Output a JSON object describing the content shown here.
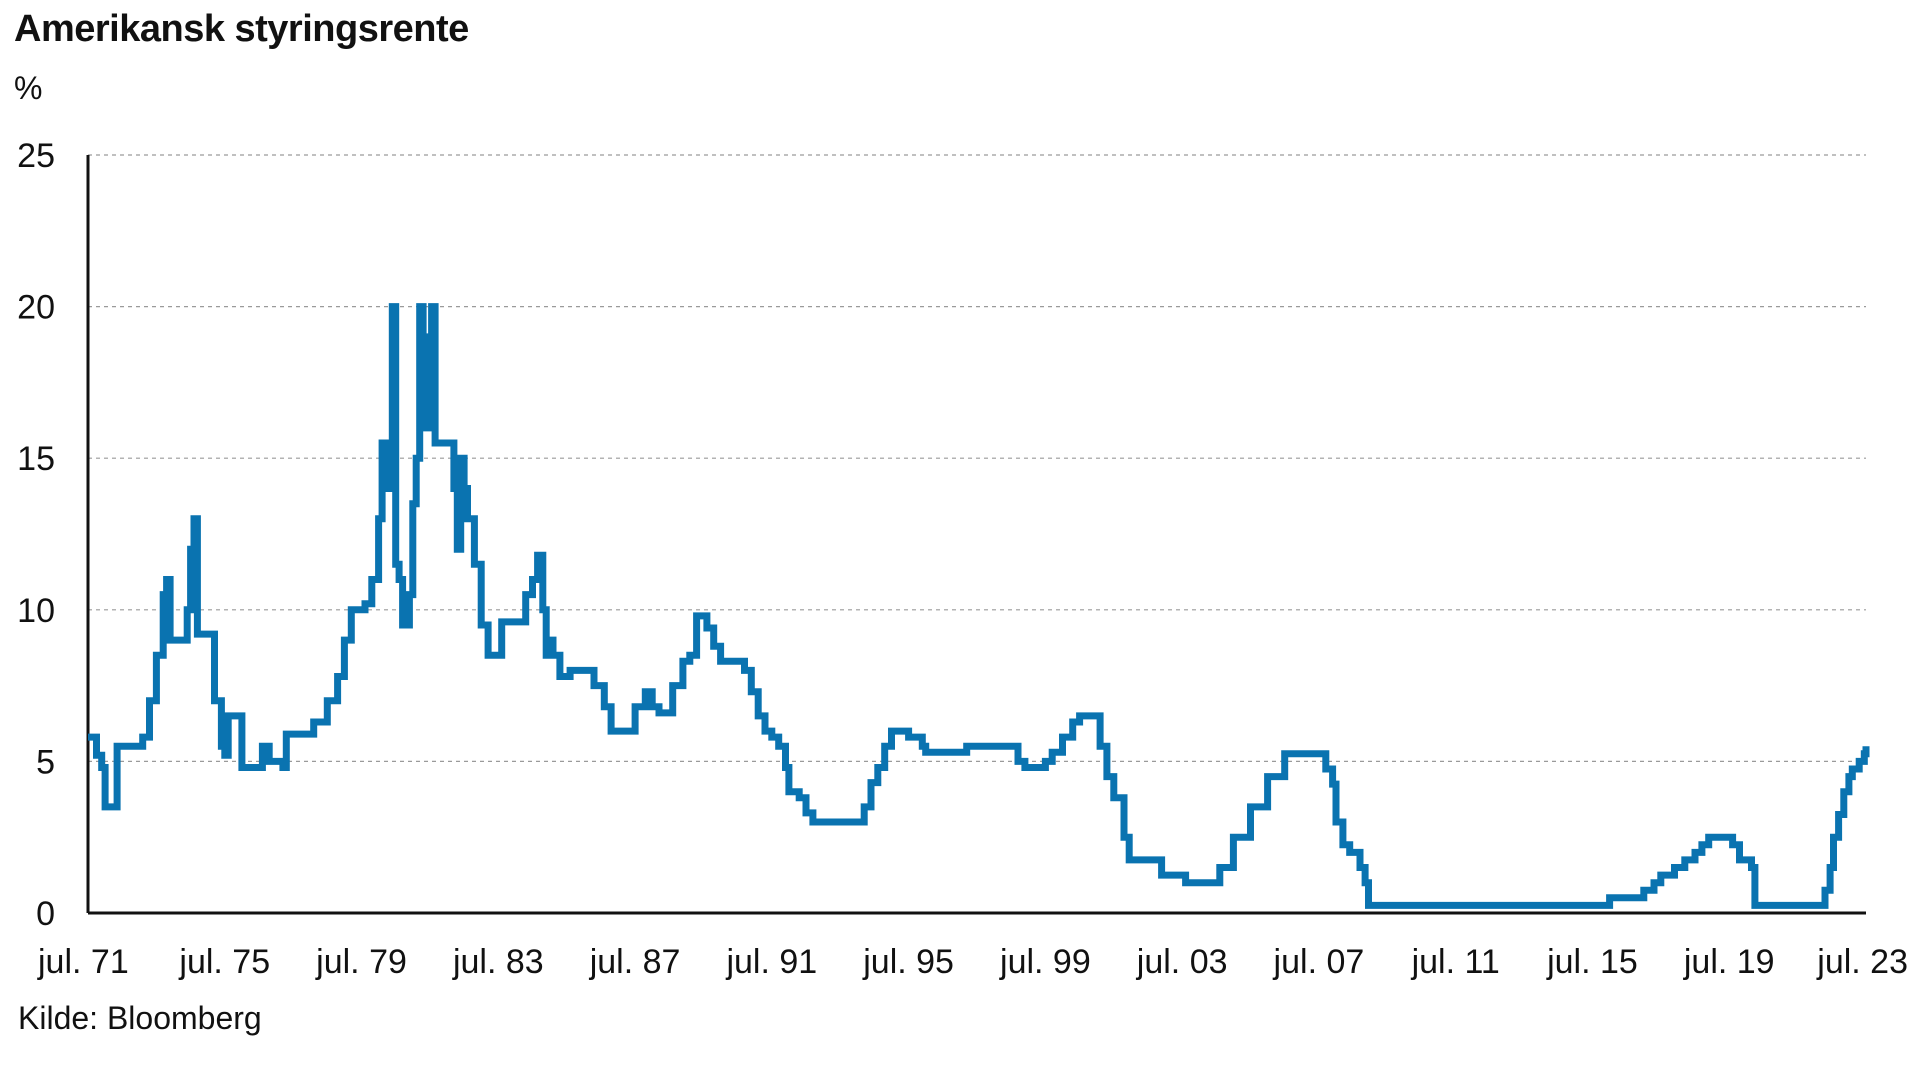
{
  "chart_data": {
    "type": "line",
    "title": "Amerikansk styringsrente",
    "ylabel": "%",
    "source": "Kilde: Bloomberg",
    "ylim": [
      0,
      25
    ],
    "y_ticks": [
      "0",
      "5",
      "10",
      "15",
      "20",
      "25"
    ],
    "x_range": [
      1971.5,
      2023.5
    ],
    "x_ticks": [
      {
        "x": 1971.5,
        "label": "jul. 71"
      },
      {
        "x": 1975.5,
        "label": "jul. 75"
      },
      {
        "x": 1979.5,
        "label": "jul. 79"
      },
      {
        "x": 1983.5,
        "label": "jul. 83"
      },
      {
        "x": 1987.5,
        "label": "jul. 87"
      },
      {
        "x": 1991.5,
        "label": "jul. 91"
      },
      {
        "x": 1995.5,
        "label": "jul. 95"
      },
      {
        "x": 1999.5,
        "label": "jul. 99"
      },
      {
        "x": 2003.5,
        "label": "jul. 03"
      },
      {
        "x": 2007.5,
        "label": "jul. 07"
      },
      {
        "x": 2011.5,
        "label": "jul. 11"
      },
      {
        "x": 2015.5,
        "label": "jul. 15"
      },
      {
        "x": 2019.5,
        "label": "jul. 19"
      },
      {
        "x": 2023.5,
        "label": "jul. 23"
      }
    ],
    "grid": "horizontal-dashed",
    "line_color": "#0a73b0",
    "series": [
      {
        "points": [
          [
            1971.5,
            5.8
          ],
          [
            1971.75,
            5.2
          ],
          [
            1971.9,
            4.8
          ],
          [
            1972.0,
            3.5
          ],
          [
            1972.3,
            3.5
          ],
          [
            1972.35,
            5.5
          ],
          [
            1973.0,
            5.5
          ],
          [
            1973.1,
            5.8
          ],
          [
            1973.3,
            7.0
          ],
          [
            1973.5,
            8.5
          ],
          [
            1973.7,
            10.5
          ],
          [
            1973.8,
            11.0
          ],
          [
            1973.9,
            9.0
          ],
          [
            1974.4,
            10.0
          ],
          [
            1974.5,
            12.0
          ],
          [
            1974.6,
            13.0
          ],
          [
            1974.7,
            9.2
          ],
          [
            1975.0,
            9.2
          ],
          [
            1975.2,
            7.0
          ],
          [
            1975.4,
            5.5
          ],
          [
            1975.5,
            5.2
          ],
          [
            1975.6,
            6.5
          ],
          [
            1975.9,
            6.5
          ],
          [
            1976.0,
            4.8
          ],
          [
            1976.5,
            4.8
          ],
          [
            1976.6,
            5.5
          ],
          [
            1976.8,
            5.0
          ],
          [
            1977.0,
            5.0
          ],
          [
            1977.2,
            4.8
          ],
          [
            1977.3,
            5.9
          ],
          [
            1977.9,
            5.9
          ],
          [
            1978.1,
            6.3
          ],
          [
            1978.5,
            7.0
          ],
          [
            1978.8,
            7.8
          ],
          [
            1979.0,
            9.0
          ],
          [
            1979.2,
            10.0
          ],
          [
            1979.6,
            10.2
          ],
          [
            1979.8,
            11.0
          ],
          [
            1980.0,
            13.0
          ],
          [
            1980.1,
            15.5
          ],
          [
            1980.2,
            14.0
          ],
          [
            1980.3,
            15.5
          ],
          [
            1980.4,
            20.0
          ],
          [
            1980.5,
            11.5
          ],
          [
            1980.6,
            11.0
          ],
          [
            1980.7,
            9.5
          ],
          [
            1980.9,
            10.5
          ],
          [
            1981.0,
            13.5
          ],
          [
            1981.1,
            15.0
          ],
          [
            1981.2,
            20.0
          ],
          [
            1981.3,
            19.0
          ],
          [
            1981.4,
            16.0
          ],
          [
            1981.55,
            20.0
          ],
          [
            1981.65,
            15.5
          ],
          [
            1982.1,
            15.5
          ],
          [
            1982.2,
            14.0
          ],
          [
            1982.3,
            12.0
          ],
          [
            1982.4,
            15.0
          ],
          [
            1982.5,
            14.0
          ],
          [
            1982.6,
            13.0
          ],
          [
            1982.8,
            11.5
          ],
          [
            1983.0,
            9.5
          ],
          [
            1983.2,
            8.5
          ],
          [
            1983.6,
            9.6
          ],
          [
            1984.0,
            9.6
          ],
          [
            1984.3,
            10.5
          ],
          [
            1984.5,
            11.0
          ],
          [
            1984.65,
            11.8
          ],
          [
            1984.8,
            10.0
          ],
          [
            1984.9,
            8.5
          ],
          [
            1985.0,
            9.0
          ],
          [
            1985.1,
            8.5
          ],
          [
            1985.3,
            7.8
          ],
          [
            1985.6,
            8.0
          ],
          [
            1986.0,
            8.0
          ],
          [
            1986.3,
            7.5
          ],
          [
            1986.6,
            6.8
          ],
          [
            1986.8,
            6.0
          ],
          [
            1987.3,
            6.0
          ],
          [
            1987.5,
            6.8
          ],
          [
            1987.8,
            7.3
          ],
          [
            1988.0,
            6.8
          ],
          [
            1988.2,
            6.6
          ],
          [
            1988.6,
            7.5
          ],
          [
            1988.9,
            8.3
          ],
          [
            1989.1,
            8.5
          ],
          [
            1989.3,
            9.8
          ],
          [
            1989.6,
            9.4
          ],
          [
            1989.8,
            8.8
          ],
          [
            1990.0,
            8.3
          ],
          [
            1990.7,
            8.0
          ],
          [
            1990.9,
            7.3
          ],
          [
            1991.1,
            6.5
          ],
          [
            1991.3,
            6.0
          ],
          [
            1991.5,
            5.8
          ],
          [
            1991.7,
            5.5
          ],
          [
            1991.9,
            4.8
          ],
          [
            1992.0,
            4.0
          ],
          [
            1992.3,
            3.8
          ],
          [
            1992.5,
            3.3
          ],
          [
            1992.7,
            3.0
          ],
          [
            1994.0,
            3.0
          ],
          [
            1994.2,
            3.5
          ],
          [
            1994.4,
            4.3
          ],
          [
            1994.6,
            4.8
          ],
          [
            1994.8,
            5.5
          ],
          [
            1995.0,
            6.0
          ],
          [
            1995.5,
            5.8
          ],
          [
            1995.9,
            5.5
          ],
          [
            1996.0,
            5.3
          ],
          [
            1997.0,
            5.3
          ],
          [
            1997.2,
            5.5
          ],
          [
            1998.5,
            5.5
          ],
          [
            1998.7,
            5.0
          ],
          [
            1998.9,
            4.8
          ],
          [
            1999.3,
            4.8
          ],
          [
            1999.5,
            5.0
          ],
          [
            1999.7,
            5.3
          ],
          [
            2000.0,
            5.8
          ],
          [
            2000.3,
            6.3
          ],
          [
            2000.5,
            6.5
          ],
          [
            2001.0,
            6.5
          ],
          [
            2001.1,
            5.5
          ],
          [
            2001.3,
            4.5
          ],
          [
            2001.5,
            3.8
          ],
          [
            2001.8,
            2.5
          ],
          [
            2001.95,
            1.75
          ],
          [
            2002.8,
            1.75
          ],
          [
            2002.9,
            1.25
          ],
          [
            2003.5,
            1.25
          ],
          [
            2003.6,
            1.0
          ],
          [
            2004.4,
            1.0
          ],
          [
            2004.6,
            1.5
          ],
          [
            2005.0,
            2.5
          ],
          [
            2005.5,
            3.5
          ],
          [
            2006.0,
            4.5
          ],
          [
            2006.5,
            5.25
          ],
          [
            2007.6,
            5.25
          ],
          [
            2007.7,
            4.75
          ],
          [
            2007.9,
            4.25
          ],
          [
            2008.0,
            3.0
          ],
          [
            2008.2,
            2.25
          ],
          [
            2008.4,
            2.0
          ],
          [
            2008.7,
            1.5
          ],
          [
            2008.85,
            1.0
          ],
          [
            2008.95,
            0.25
          ],
          [
            2015.9,
            0.25
          ],
          [
            2016.0,
            0.5
          ],
          [
            2016.9,
            0.5
          ],
          [
            2017.0,
            0.75
          ],
          [
            2017.3,
            1.0
          ],
          [
            2017.5,
            1.25
          ],
          [
            2017.9,
            1.5
          ],
          [
            2018.2,
            1.75
          ],
          [
            2018.5,
            2.0
          ],
          [
            2018.7,
            2.25
          ],
          [
            2018.9,
            2.5
          ],
          [
            2019.4,
            2.5
          ],
          [
            2019.6,
            2.25
          ],
          [
            2019.8,
            1.75
          ],
          [
            2020.15,
            1.5
          ],
          [
            2020.25,
            0.25
          ],
          [
            2022.15,
            0.25
          ],
          [
            2022.3,
            0.75
          ],
          [
            2022.45,
            1.5
          ],
          [
            2022.55,
            2.5
          ],
          [
            2022.7,
            3.25
          ],
          [
            2022.85,
            4.0
          ],
          [
            2023.0,
            4.5
          ],
          [
            2023.1,
            4.75
          ],
          [
            2023.3,
            5.0
          ],
          [
            2023.45,
            5.25
          ],
          [
            2023.5,
            5.5
          ]
        ]
      }
    ]
  }
}
